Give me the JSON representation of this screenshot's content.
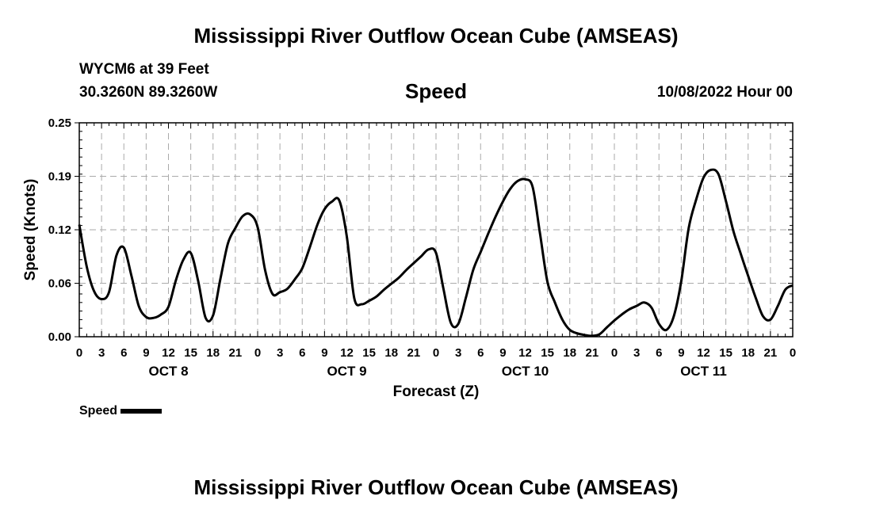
{
  "header": {
    "title": "Mississippi River Outflow Ocean Cube (AMSEAS)",
    "station": "WYCM6 at 39 Feet",
    "coordinates": "30.3260N  89.3260W",
    "variable": "Speed",
    "datetime": "10/08/2022 Hour 00"
  },
  "footer": {
    "title": "Mississippi River Outflow Ocean Cube (AMSEAS)"
  },
  "chart_data": {
    "type": "line",
    "title": "Speed",
    "xlabel": "Forecast (Z)",
    "ylabel": "Speed (Knots)",
    "xlim": [
      0,
      96
    ],
    "ylim": [
      0,
      0.25
    ],
    "y_ticks": [
      "0.00",
      "0.06",
      "0.12",
      "0.19",
      "0.25"
    ],
    "y_tick_values": [
      0,
      0.0625,
      0.125,
      0.1875,
      0.25
    ],
    "x_ticks": [
      "0",
      "3",
      "6",
      "9",
      "12",
      "15",
      "18",
      "21",
      "0",
      "3",
      "6",
      "9",
      "12",
      "15",
      "18",
      "21",
      "0",
      "3",
      "6",
      "9",
      "12",
      "15",
      "18",
      "21",
      "0",
      "3",
      "6",
      "9",
      "12",
      "15",
      "18",
      "21",
      "0"
    ],
    "day_labels": [
      {
        "label": "OCT 8",
        "hour": 12
      },
      {
        "label": "OCT 9",
        "hour": 36
      },
      {
        "label": "OCT 10",
        "hour": 60
      },
      {
        "label": "OCT 11",
        "hour": 84
      }
    ],
    "grid": true,
    "series": [
      {
        "name": "Speed",
        "x": [
          0,
          1,
          2,
          3,
          4,
          5,
          6,
          7,
          8,
          9,
          10,
          11,
          12,
          13,
          14,
          15,
          16,
          17,
          18,
          19,
          20,
          21,
          22,
          23,
          24,
          25,
          26,
          27,
          28,
          29,
          30,
          31,
          32,
          33,
          34,
          35,
          36,
          37,
          38,
          39,
          40,
          41,
          42,
          43,
          44,
          45,
          46,
          47,
          48,
          49,
          50,
          51,
          52,
          53,
          54,
          55,
          56,
          57,
          58,
          59,
          60,
          61,
          62,
          63,
          64,
          65,
          66,
          67,
          68,
          69,
          70,
          71,
          72,
          73,
          74,
          75,
          76,
          77,
          78,
          79,
          80,
          81,
          82,
          83,
          84,
          85,
          86,
          87,
          88,
          89,
          90,
          91,
          92,
          93,
          94,
          95,
          96
        ],
        "values": [
          0.131,
          0.082,
          0.053,
          0.044,
          0.052,
          0.095,
          0.104,
          0.072,
          0.036,
          0.023,
          0.022,
          0.026,
          0.035,
          0.066,
          0.09,
          0.098,
          0.065,
          0.022,
          0.025,
          0.068,
          0.109,
          0.127,
          0.141,
          0.143,
          0.128,
          0.078,
          0.05,
          0.052,
          0.056,
          0.067,
          0.08,
          0.104,
          0.13,
          0.149,
          0.158,
          0.159,
          0.117,
          0.045,
          0.038,
          0.042,
          0.047,
          0.055,
          0.062,
          0.069,
          0.078,
          0.086,
          0.094,
          0.102,
          0.098,
          0.056,
          0.016,
          0.015,
          0.045,
          0.078,
          0.099,
          0.12,
          0.14,
          0.158,
          0.173,
          0.182,
          0.184,
          0.175,
          0.12,
          0.064,
          0.04,
          0.02,
          0.008,
          0.004,
          0.002,
          0.001,
          0.003,
          0.011,
          0.019,
          0.026,
          0.032,
          0.036,
          0.04,
          0.034,
          0.015,
          0.008,
          0.024,
          0.065,
          0.127,
          0.16,
          0.186,
          0.195,
          0.19,
          0.159,
          0.124,
          0.097,
          0.071,
          0.046,
          0.024,
          0.02,
          0.036,
          0.055,
          0.06
        ]
      }
    ]
  },
  "legend": {
    "label": "Speed"
  }
}
